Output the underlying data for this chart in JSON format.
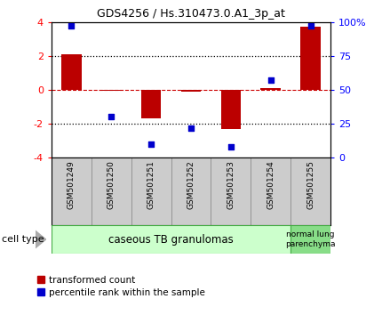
{
  "title": "GDS4256 / Hs.310473.0.A1_3p_at",
  "samples": [
    "GSM501249",
    "GSM501250",
    "GSM501251",
    "GSM501252",
    "GSM501253",
    "GSM501254",
    "GSM501255"
  ],
  "transformed_count": [
    2.1,
    -0.05,
    -1.7,
    -0.1,
    -2.3,
    0.1,
    3.7
  ],
  "percentile_rank": [
    97,
    30,
    10,
    22,
    8,
    57,
    97
  ],
  "ylim_left": [
    -4,
    4
  ],
  "ylim_right": [
    0,
    100
  ],
  "yticks_left": [
    -4,
    -2,
    0,
    2,
    4
  ],
  "yticks_right": [
    0,
    25,
    50,
    75,
    100
  ],
  "ytick_labels_right": [
    "0",
    "25",
    "50",
    "75",
    "100%"
  ],
  "bar_color": "#bb0000",
  "dot_color": "#0000cc",
  "hline_color": "#cc0000",
  "dotted_color": "#000000",
  "group1_label": "caseous TB granulomas",
  "group2_label": "normal lung\nparenchyma",
  "group1_color": "#ccffcc",
  "group2_color": "#88dd88",
  "cell_type_label": "cell type",
  "legend_bar_label": "transformed count",
  "legend_dot_label": "percentile rank within the sample",
  "bar_width": 0.5,
  "sample_bg_color": "#cccccc",
  "sample_edge_color": "#888888"
}
